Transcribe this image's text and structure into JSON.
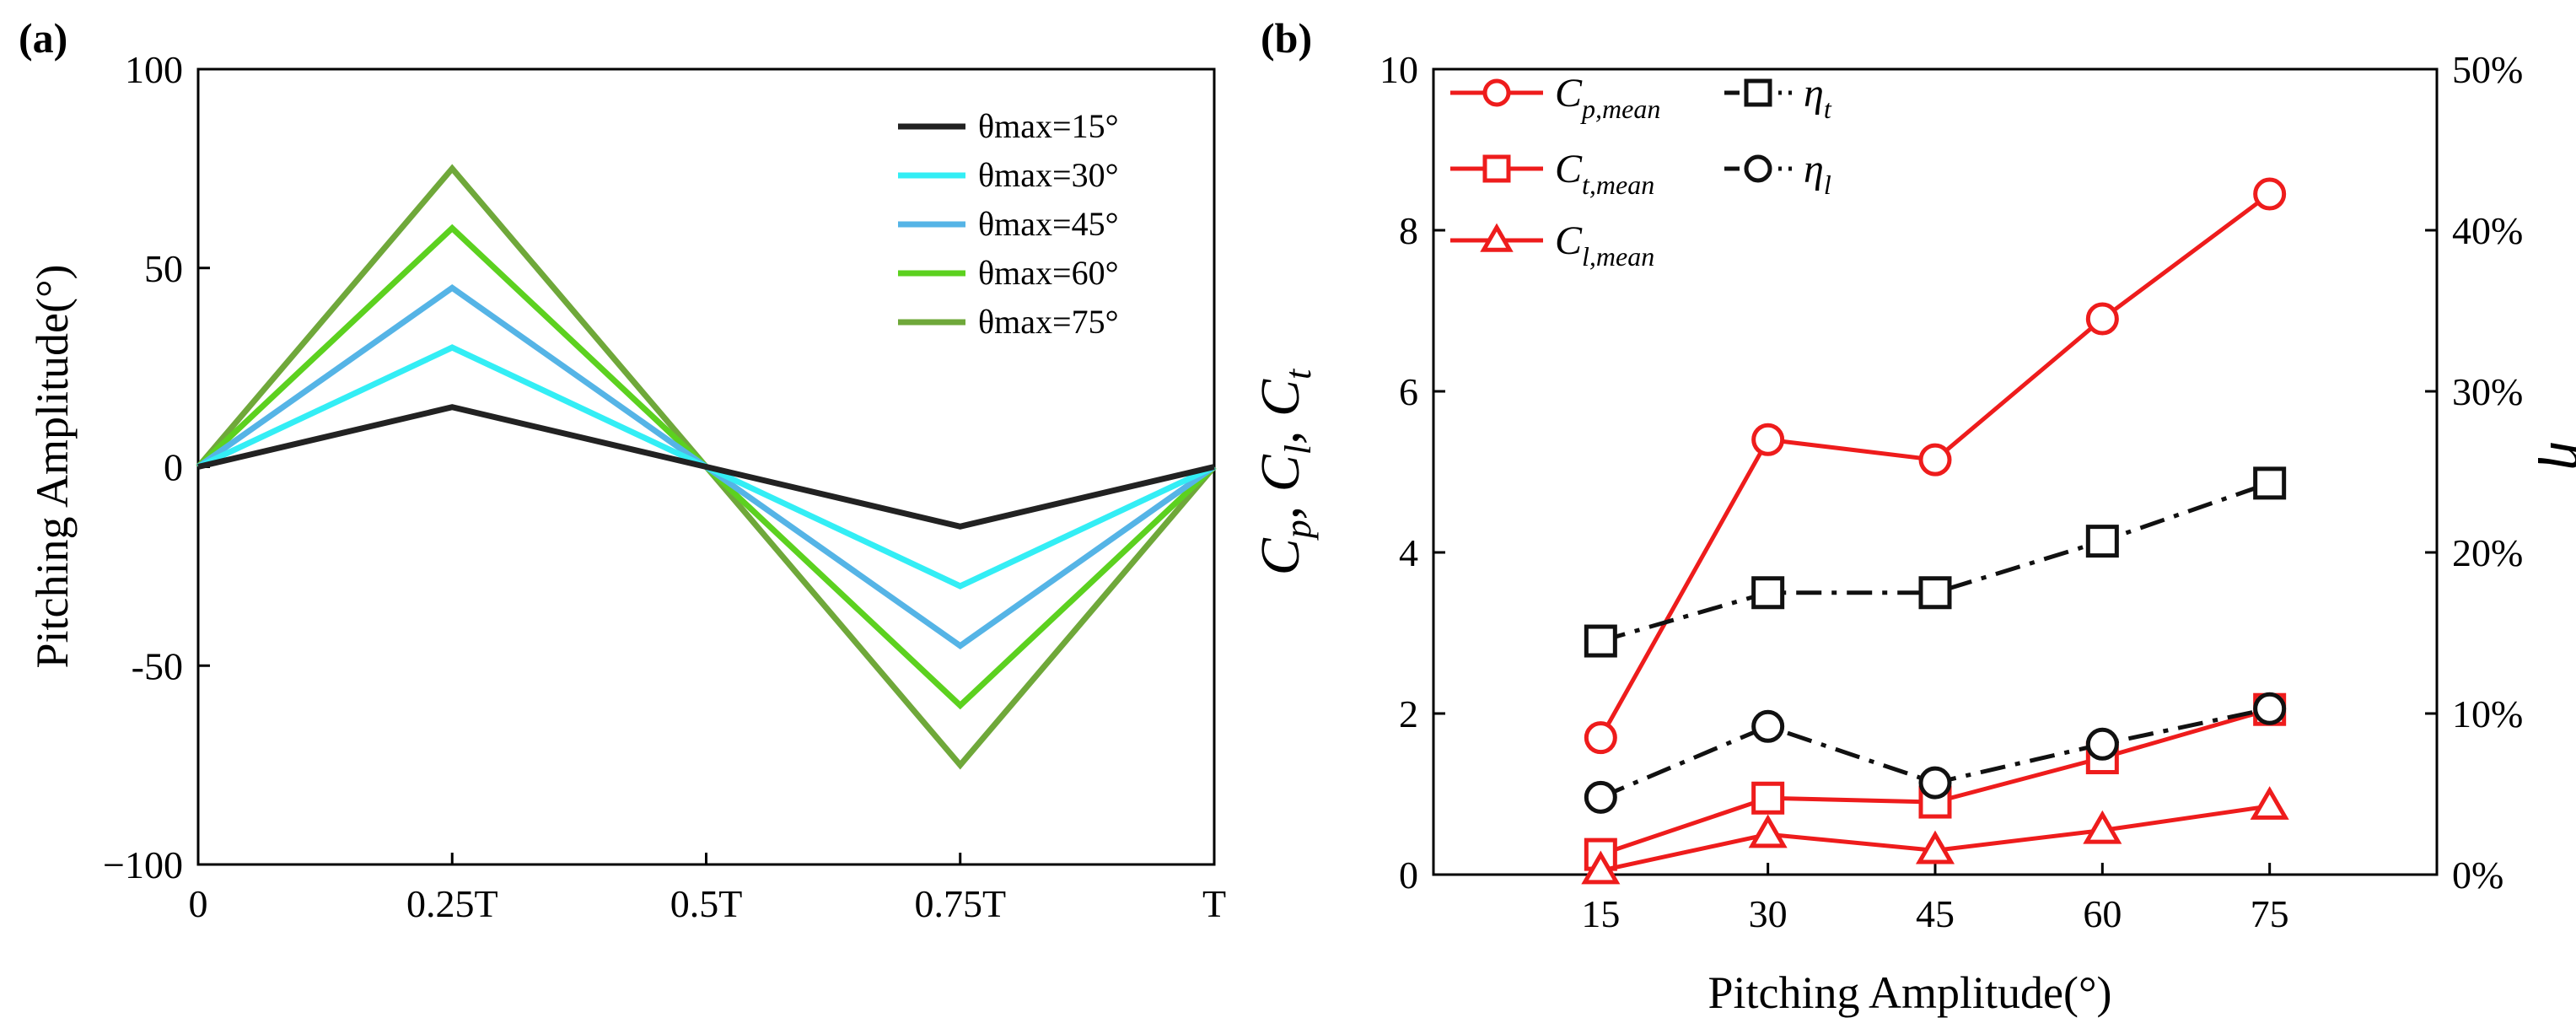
{
  "chart_data": [
    {
      "panel": "(a)",
      "type": "line",
      "x": [
        "0",
        "0.25T",
        "0.5T",
        "0.75T",
        "T"
      ],
      "ylabel": "Pitching Amplitude(°)",
      "xlabel": "",
      "ylim": [
        -100,
        100
      ],
      "yticks": [
        {
          "value": 100,
          "label": "100"
        },
        {
          "value": 50,
          "label": "50"
        },
        {
          "value": 0,
          "label": "0"
        },
        {
          "value": -50,
          "label": "-50"
        },
        {
          "value": -100,
          "label": "−100"
        }
      ],
      "legend_position": "top-right",
      "series": [
        {
          "name": "θmax=15°",
          "color": "#222222",
          "values": [
            0,
            15,
            0,
            -15,
            0
          ]
        },
        {
          "name": "θmax=30°",
          "color": "#33EEF5",
          "values": [
            0,
            30,
            0,
            -30,
            0
          ]
        },
        {
          "name": "θmax=45°",
          "color": "#55B4E6",
          "values": [
            0,
            45,
            0,
            -45,
            0
          ]
        },
        {
          "name": "θmax=60°",
          "color": "#5CD11F",
          "values": [
            0,
            60,
            0,
            -60,
            0
          ]
        },
        {
          "name": "θmax=75°",
          "color": "#6FA83A",
          "values": [
            0,
            75,
            0,
            -75,
            0
          ]
        }
      ]
    },
    {
      "panel": "(b)",
      "type": "line",
      "x": [
        15,
        30,
        45,
        60,
        75
      ],
      "xlim": [
        0,
        90
      ],
      "xlabel": "Pitching Amplitude(°)",
      "ylabel_parts": [
        {
          "t": "C"
        },
        {
          "t": "p",
          "sub": true
        },
        {
          "t": ", "
        },
        {
          "t": "C"
        },
        {
          "t": "l",
          "sub": true
        },
        {
          "t": ", "
        },
        {
          "t": "C"
        },
        {
          "t": "t",
          "sub": true
        }
      ],
      "ylim": [
        0,
        10
      ],
      "yticks": [
        "0",
        "2",
        "4",
        "6",
        "8",
        "10"
      ],
      "y2label": "η",
      "y2lim": [
        0,
        50
      ],
      "y2ticks": [
        "0%",
        "10%",
        "20%",
        "30%",
        "40%",
        "50%"
      ],
      "legend_position": "top-left",
      "series": [
        {
          "name": "C",
          "sub": "p,mean",
          "axis": "left",
          "color": "#EE1C1C",
          "marker": "circle",
          "dash": "solid",
          "values": [
            1.7,
            5.4,
            5.15,
            6.9,
            8.45
          ]
        },
        {
          "name": "C",
          "sub": "t,mean",
          "axis": "left",
          "color": "#EE1C1C",
          "marker": "square",
          "dash": "solid",
          "values": [
            0.25,
            0.95,
            0.9,
            1.45,
            2.05
          ]
        },
        {
          "name": "C",
          "sub": "l,mean",
          "axis": "left",
          "color": "#EE1C1C",
          "marker": "triangle",
          "dash": "solid",
          "values": [
            0.05,
            0.5,
            0.3,
            0.55,
            0.85
          ]
        },
        {
          "name": "η",
          "sub": "t",
          "axis": "right",
          "color": "#111111",
          "marker": "square",
          "dash": "dashdot",
          "values": [
            14.5,
            17.5,
            17.5,
            20.7,
            24.3
          ]
        },
        {
          "name": "η",
          "sub": "l",
          "axis": "right",
          "color": "#111111",
          "marker": "circle",
          "dash": "dashdot",
          "values": [
            4.8,
            9.2,
            5.7,
            8.1,
            10.3
          ]
        }
      ]
    }
  ]
}
